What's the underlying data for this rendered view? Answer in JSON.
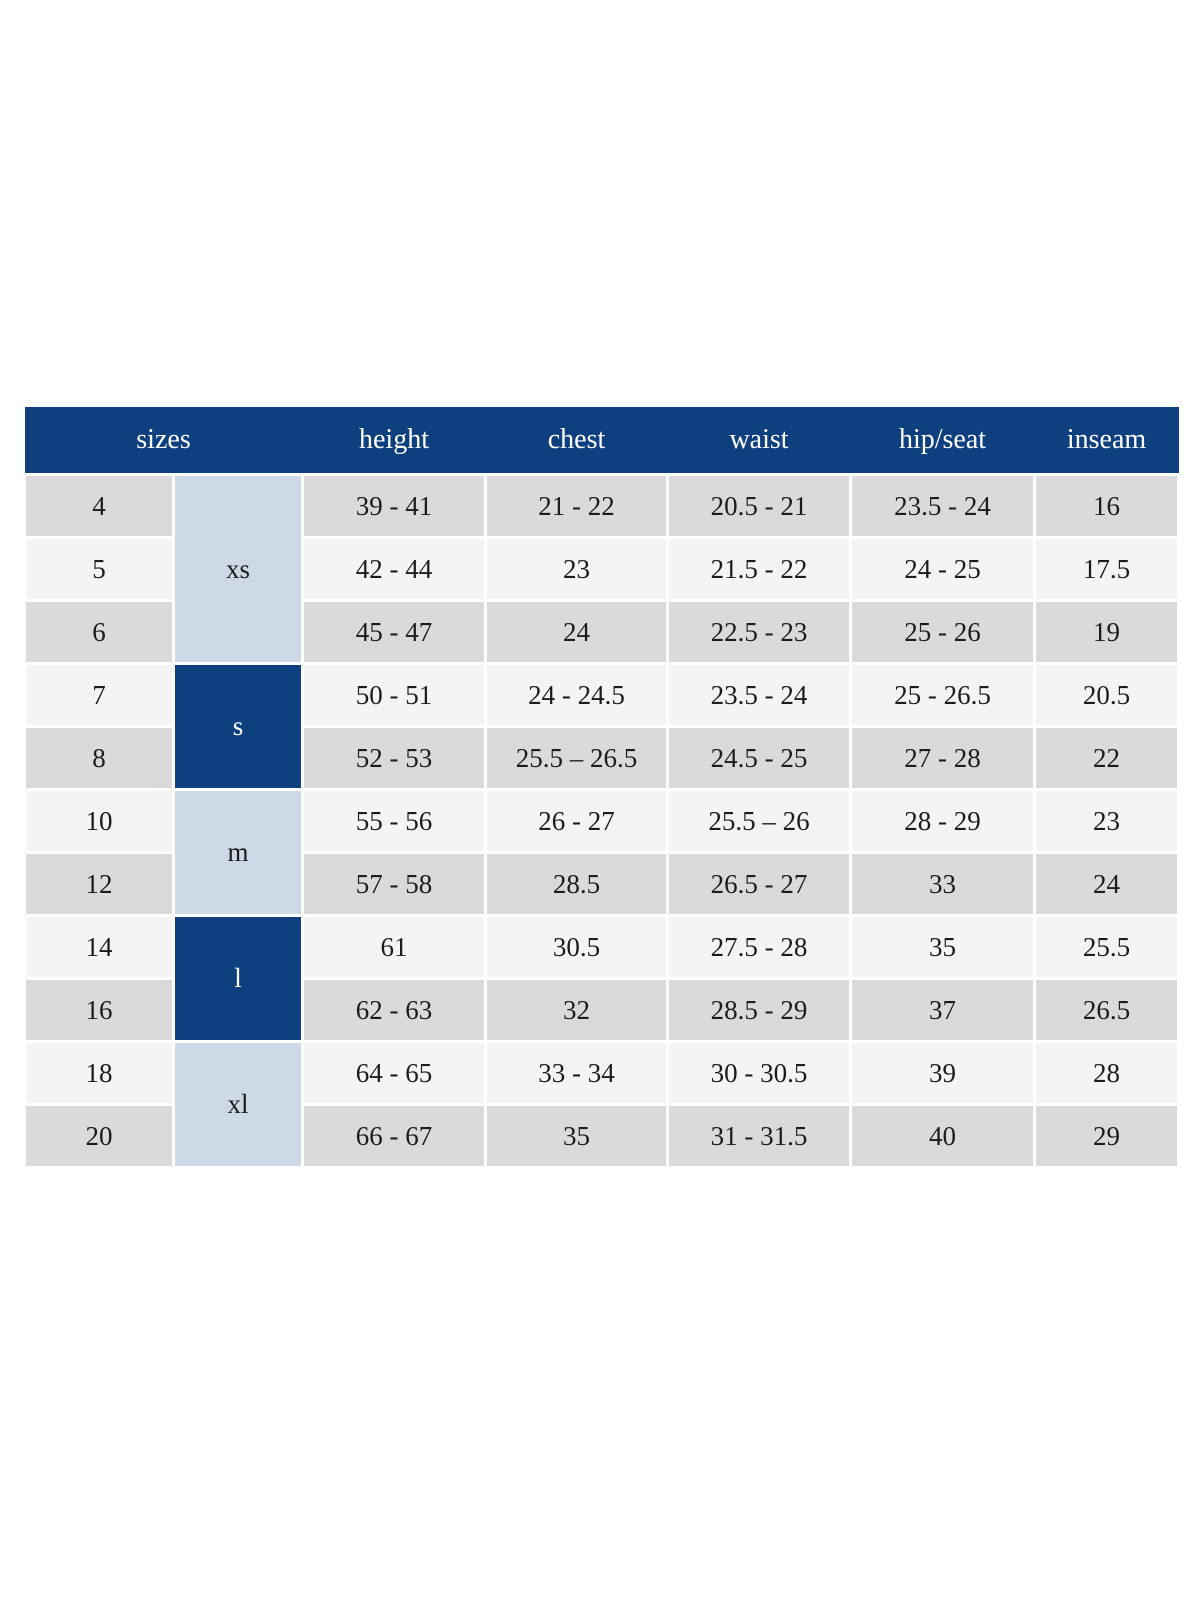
{
  "table": {
    "columns": [
      "sizes",
      "height",
      "chest",
      "waist",
      "hip/seat",
      "inseam"
    ],
    "groups": [
      {
        "label": "xs",
        "style": "light",
        "rows": [
          {
            "size": "4",
            "height": "39 - 41",
            "chest": "21 - 22",
            "waist": "20.5 - 21",
            "hip_seat": "23.5 - 24",
            "inseam": "16"
          },
          {
            "size": "5",
            "height": "42 - 44",
            "chest": "23",
            "waist": "21.5 - 22",
            "hip_seat": "24 - 25",
            "inseam": "17.5"
          },
          {
            "size": "6",
            "height": "45 - 47",
            "chest": "24",
            "waist": "22.5 - 23",
            "hip_seat": "25 - 26",
            "inseam": "19"
          }
        ]
      },
      {
        "label": "s",
        "style": "dark",
        "rows": [
          {
            "size": "7",
            "height": "50 - 51",
            "chest": "24 - 24.5",
            "waist": "23.5 - 24",
            "hip_seat": "25 - 26.5",
            "inseam": "20.5"
          },
          {
            "size": "8",
            "height": "52 - 53",
            "chest": "25.5 – 26.5",
            "waist": "24.5 - 25",
            "hip_seat": "27 - 28",
            "inseam": "22"
          }
        ]
      },
      {
        "label": "m",
        "style": "light",
        "rows": [
          {
            "size": "10",
            "height": "55 - 56",
            "chest": "26 - 27",
            "waist": "25.5 – 26",
            "hip_seat": "28 - 29",
            "inseam": "23"
          },
          {
            "size": "12",
            "height": "57 - 58",
            "chest": "28.5",
            "waist": "26.5 - 27",
            "hip_seat": "33",
            "inseam": "24"
          }
        ]
      },
      {
        "label": "l",
        "style": "dark",
        "rows": [
          {
            "size": "14",
            "height": "61",
            "chest": "30.5",
            "waist": "27.5 - 28",
            "hip_seat": "35",
            "inseam": "25.5"
          },
          {
            "size": "16",
            "height": "62 - 63",
            "chest": "32",
            "waist": "28.5 - 29",
            "hip_seat": "37",
            "inseam": "26.5"
          }
        ]
      },
      {
        "label": "xl",
        "style": "light",
        "rows": [
          {
            "size": "18",
            "height": "64 - 65",
            "chest": "33 - 34",
            "waist": "30 - 30.5",
            "hip_seat": "39",
            "inseam": "28"
          },
          {
            "size": "20",
            "height": "66 - 67",
            "chest": "35",
            "waist": "31 - 31.5",
            "hip_seat": "40",
            "inseam": "29"
          }
        ]
      }
    ],
    "colors": {
      "header_bg": "#0E4080",
      "header_text": "#FFFFFF",
      "group_light_bg": "#CDD9E6",
      "group_dark_bg": "#0E4080",
      "group_dark_text": "#FFFFFF",
      "row_gray_bg": "#DADADA",
      "row_lite_bg": "#F4F4F4",
      "body_text": "#1C1C1C"
    }
  }
}
